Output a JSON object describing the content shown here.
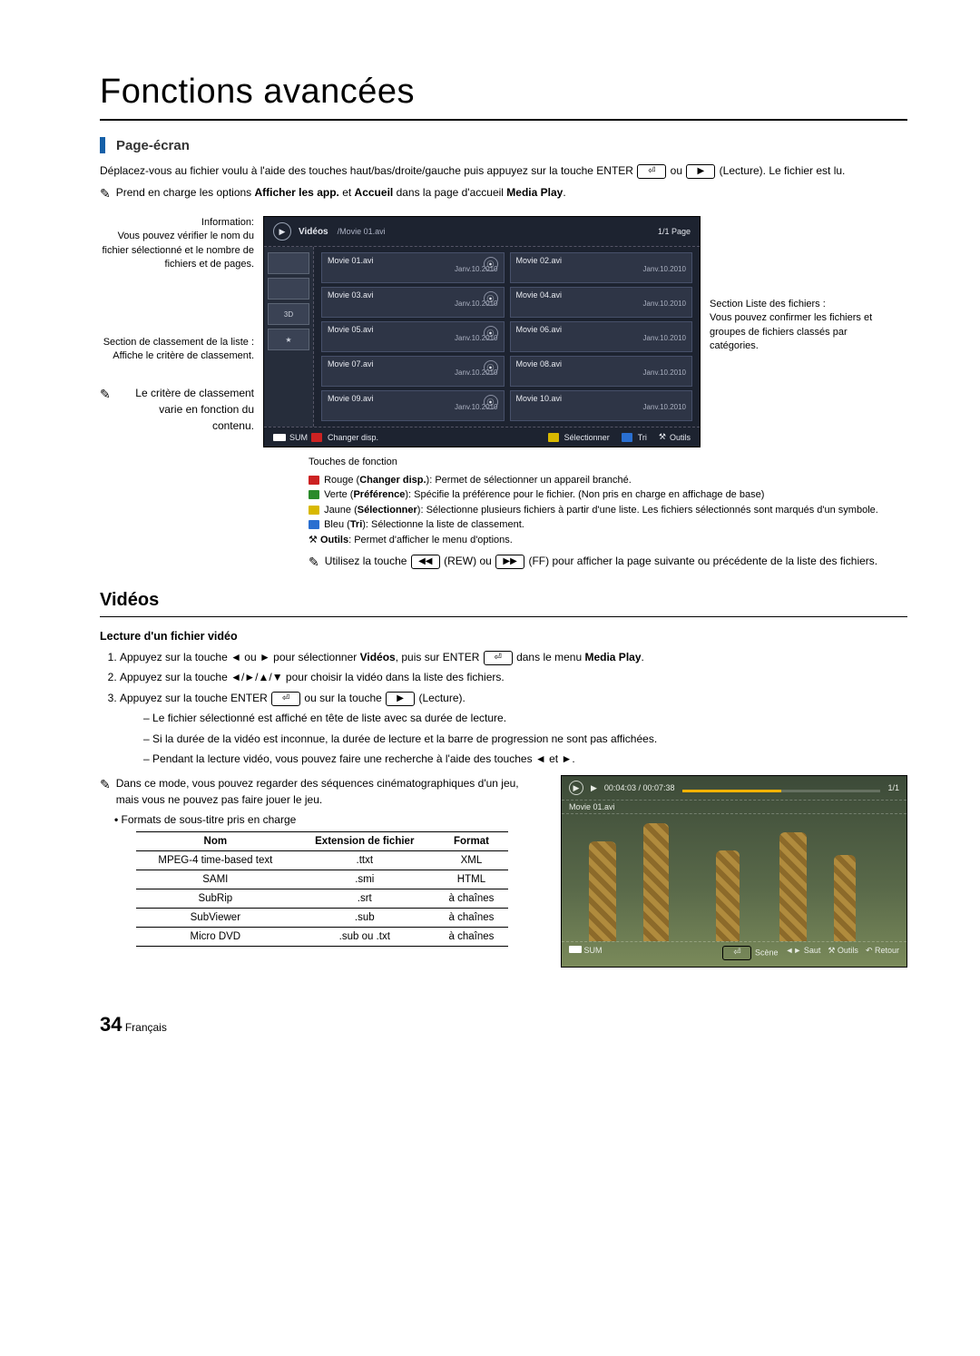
{
  "page_title": "Fonctions avancées",
  "section_heading": "Page-écran",
  "intro": "Déplacez-vous au fichier voulu à l'aide des touches haut/bas/droite/gauche puis appuyez sur la touche ENTER ",
  "intro_tail": " (Lecture). Le fichier est lu.",
  "enter_icon_label": "⏎",
  "play_icon_label": "▶",
  "or_word": " ou ",
  "note1_pre": "Prend en charge les options ",
  "note1_b1": "Afficher les app.",
  "note1_mid": " et ",
  "note1_b2": "Accueil",
  "note1_post": " dans la page d'accueil ",
  "note1_b3": "Media Play",
  "note1_end": ".",
  "ann_info_title": "Information:",
  "ann_info_body": "Vous pouvez vérifier le nom du fichier sélectionné et le nombre de fichiers et de pages.",
  "ann_sort_title": "Section de classement de la liste :",
  "ann_sort_body": "Affiche le critère de classement.",
  "ann_sort_note": "Le critère de classement varie en fonction du contenu.",
  "ann_right_title": "Section Liste des fichiers :",
  "ann_right_body": "Vous pouvez confirmer les fichiers et groupes de fichiers classés par catégories.",
  "tv": {
    "category": "Vidéos",
    "path": "/Movie 01.avi",
    "page": "1/1 Page",
    "side": [
      "",
      "",
      "3D",
      "★"
    ],
    "files": [
      {
        "l": "Movie 01.avi",
        "r": "Movie 02.avi"
      },
      {
        "l": "Movie 03.avi",
        "r": "Movie 04.avi"
      },
      {
        "l": "Movie 05.avi",
        "r": "Movie 06.avi"
      },
      {
        "l": "Movie 07.avi",
        "r": "Movie 08.avi"
      },
      {
        "l": "Movie 09.avi",
        "r": "Movie 10.avi"
      }
    ],
    "date": "Janv.10.2010",
    "sum": "SUM",
    "a_label": "Changer disp.",
    "c_label": "Sélectionner",
    "d_label": "Tri",
    "t_label": "Outils"
  },
  "fn": {
    "header": "Touches de fonction",
    "a_pre": "Rouge (",
    "a_b": "Changer disp.",
    "a_post": "): Permet de sélectionner un appareil branché.",
    "b_pre": "Verte (",
    "b_b": "Préférence",
    "b_post": "): Spécifie la préférence pour le fichier. (Non pris en charge en affichage de base)",
    "c_pre": "Jaune (",
    "c_b": "Sélectionner",
    "c_post": "): Sélectionne plusieurs fichiers à partir d'une liste. Les fichiers sélectionnés sont marqués d'un symbole.",
    "d_pre": "Bleu (",
    "d_b": "Tri",
    "d_post": "): Sélectionne la liste de classement.",
    "e_b": "Outils",
    "e_post": ": Permet d'afficher le menu d'options.",
    "rew_note_pre": "Utilisez la touche ",
    "rew_label": "◀◀",
    "rew_txt": " (REW) ou ",
    "ff_label": "▶▶",
    "ff_txt": " (FF) pour afficher la page suivante ou précédente de la liste des fichiers."
  },
  "videos_h": "Vidéos",
  "videos_sub": "Lecture d'un fichier vidéo",
  "steps": [
    {
      "pre": "Appuyez sur la touche ◄ ou ► pour sélectionner ",
      "b1": "Vidéos",
      "mid": ", puis sur ENTER ",
      "tail": " dans le menu ",
      "b2": "Media Play",
      "end": "."
    },
    {
      "pre": "Appuyez sur la touche ◄/►/▲/▼ pour choisir la vidéo dans la liste des fichiers."
    },
    {
      "pre": "Appuyez sur la touche ENTER ",
      "mid": " ou sur la touche ",
      "tail": " (Lecture)."
    }
  ],
  "sub_dashes": [
    "Le fichier sélectionné est affiché en tête de liste avec sa durée de lecture.",
    "Si la durée de la vidéo est inconnue, la durée de lecture et la barre de progression ne sont pas affichées.",
    "Pendant la lecture vidéo, vous pouvez faire une recherche à l'aide des touches ◄ et ►."
  ],
  "mode_note": "Dans ce mode, vous pouvez regarder des séquences cinématographiques d'un jeu, mais vous ne pouvez pas faire jouer le jeu.",
  "bullet_formats": "Formats de sous-titre pris en charge",
  "table": {
    "headers": [
      "Nom",
      "Extension de fichier",
      "Format"
    ],
    "rows": [
      [
        "MPEG-4 time-based text",
        ".ttxt",
        "XML"
      ],
      [
        "SAMI",
        ".smi",
        "HTML"
      ],
      [
        "SubRip",
        ".srt",
        "à chaînes"
      ],
      [
        "SubViewer",
        ".sub",
        "à chaînes"
      ],
      [
        "Micro DVD",
        ".sub ou .txt",
        "à chaînes"
      ]
    ]
  },
  "player": {
    "time": "00:04:03 / 00:07:38",
    "page": "1/1",
    "title": "Movie 01.avi",
    "sum": "SUM",
    "scene": "Scène",
    "saut": "Saut",
    "outils": "Outils",
    "retour": "Retour"
  },
  "page_number": "34",
  "page_lang": "Français"
}
